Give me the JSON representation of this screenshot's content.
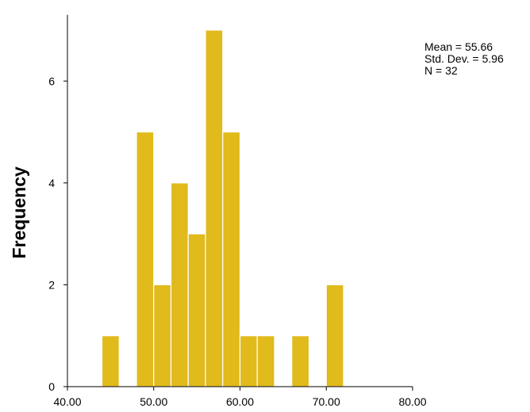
{
  "chart_data": {
    "type": "bar",
    "subtype": "histogram",
    "ylabel": "Frequency",
    "xlabel": "",
    "xlim": [
      40,
      80
    ],
    "ylim": [
      0,
      7.3
    ],
    "x_ticks": [
      40,
      50,
      60,
      70,
      80
    ],
    "x_tick_labels": [
      "40.00",
      "50.00",
      "60.00",
      "70.00",
      "80.00"
    ],
    "y_ticks": [
      0,
      2,
      4,
      6
    ],
    "y_tick_labels": [
      "0",
      "2",
      "4",
      "6"
    ],
    "bins": [
      {
        "start": 44,
        "end": 46,
        "count": 1
      },
      {
        "start": 46,
        "end": 48,
        "count": 0
      },
      {
        "start": 48,
        "end": 50,
        "count": 5
      },
      {
        "start": 50,
        "end": 52,
        "count": 2
      },
      {
        "start": 52,
        "end": 54,
        "count": 4
      },
      {
        "start": 54,
        "end": 56,
        "count": 3
      },
      {
        "start": 56,
        "end": 58,
        "count": 7
      },
      {
        "start": 58,
        "end": 60,
        "count": 5
      },
      {
        "start": 60,
        "end": 62,
        "count": 1
      },
      {
        "start": 62,
        "end": 64,
        "count": 1
      },
      {
        "start": 64,
        "end": 66,
        "count": 0
      },
      {
        "start": 66,
        "end": 68,
        "count": 1
      },
      {
        "start": 68,
        "end": 70,
        "count": 0
      },
      {
        "start": 70,
        "end": 72,
        "count": 2
      }
    ],
    "bar_color": "#E1BA1B",
    "bar_edge_color": "#ffffff",
    "grid": false,
    "legend": "none",
    "stats": {
      "mean_label": "Mean = 55.66",
      "sd_label": "Std. Dev. = 5.96",
      "n_label": "N = 32"
    }
  }
}
